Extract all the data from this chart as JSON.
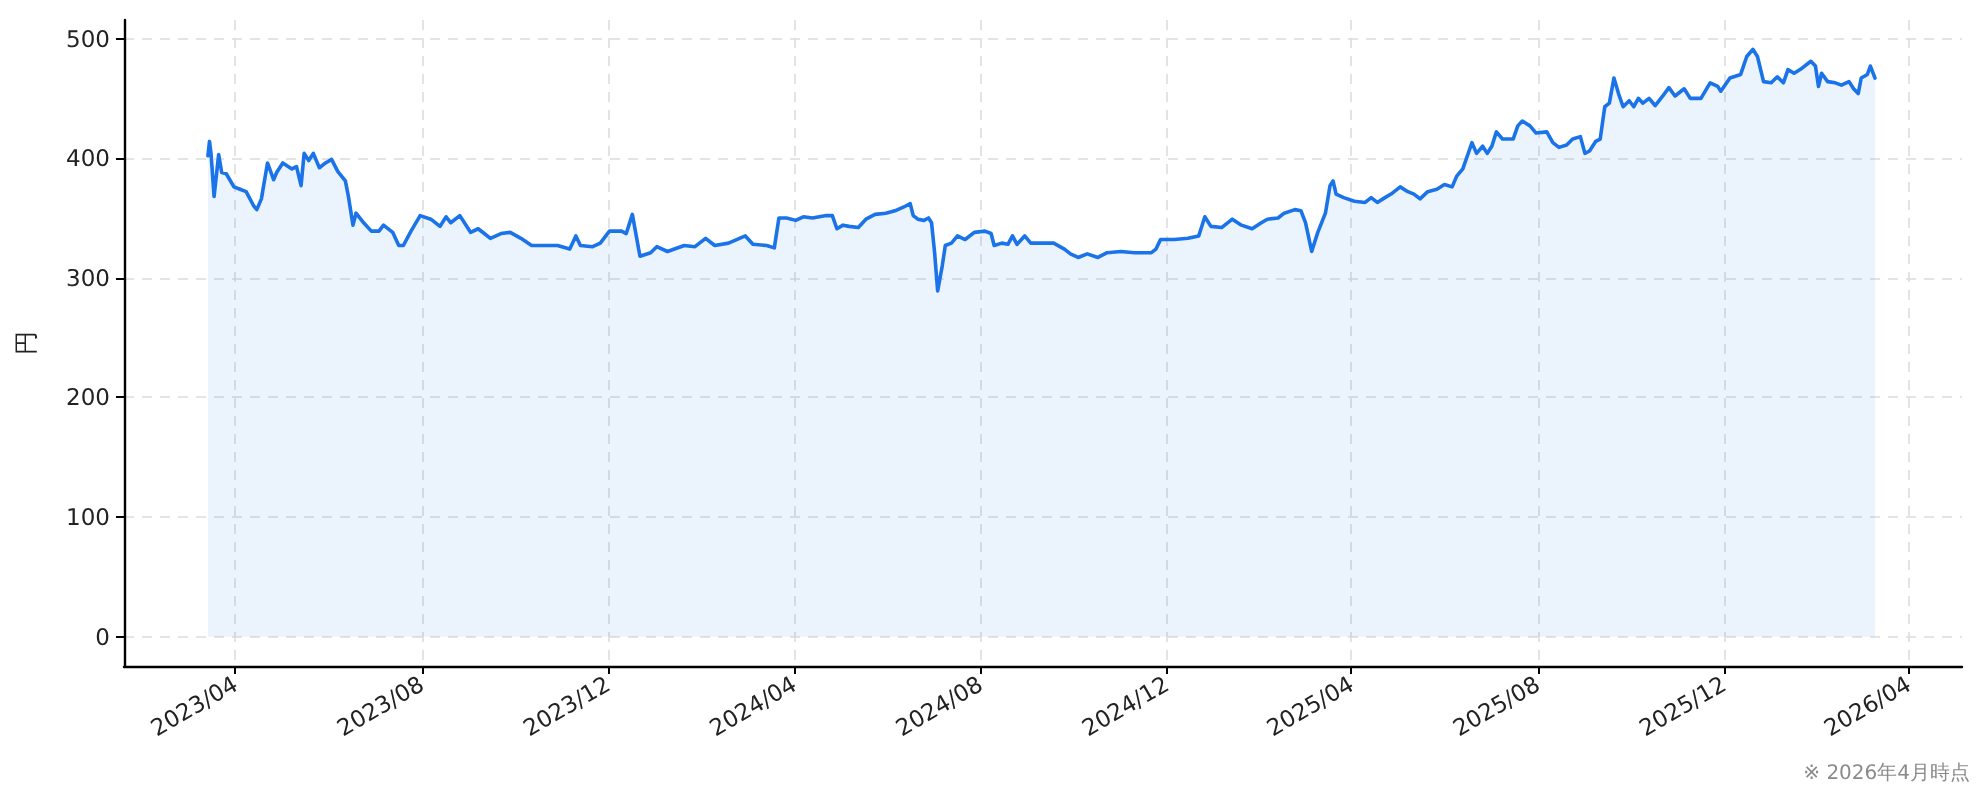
{
  "chart_data": {
    "type": "area",
    "ylabel": "円",
    "annotations": [
      "※ 2026年4月時点"
    ],
    "x": [
      "2023-03-14",
      "2023-03-15",
      "2023-03-16",
      "2023-03-18",
      "2023-03-21",
      "2023-03-23",
      "2023-03-26",
      "2023-03-31",
      "2023-04-04",
      "2023-04-08",
      "2023-04-13",
      "2023-04-15",
      "2023-04-18",
      "2023-04-22",
      "2023-04-26",
      "2023-04-28",
      "2023-05-02",
      "2023-05-08",
      "2023-05-11",
      "2023-05-14",
      "2023-05-16",
      "2023-05-19",
      "2023-05-22",
      "2023-05-26",
      "2023-05-30",
      "2023-06-03",
      "2023-06-07",
      "2023-06-12",
      "2023-06-14",
      "2023-06-17",
      "2023-06-19",
      "2023-06-24",
      "2023-06-29",
      "2023-07-04",
      "2023-07-07",
      "2023-07-13",
      "2023-07-17",
      "2023-07-20",
      "2023-07-25",
      "2023-07-31",
      "2023-08-07",
      "2023-08-13",
      "2023-08-17",
      "2023-08-20",
      "2023-08-26",
      "2023-09-02",
      "2023-09-07",
      "2023-09-11",
      "2023-09-15",
      "2023-09-22",
      "2023-09-28",
      "2023-10-05",
      "2023-10-12",
      "2023-10-20",
      "2023-10-29",
      "2023-11-06",
      "2023-11-10",
      "2023-11-13",
      "2023-11-21",
      "2023-11-26",
      "2023-12-02",
      "2023-12-10",
      "2023-12-13",
      "2023-12-17",
      "2023-12-22",
      "2023-12-29",
      "2024-01-02",
      "2024-01-09",
      "2024-01-20",
      "2024-01-27",
      "2024-02-03",
      "2024-02-09",
      "2024-02-18",
      "2024-02-29",
      "2024-03-05",
      "2024-03-14",
      "2024-03-19",
      "2024-03-22",
      "2024-03-27",
      "2024-04-02",
      "2024-04-07",
      "2024-04-13",
      "2024-04-22",
      "2024-04-26",
      "2024-04-29",
      "2024-05-03",
      "2024-05-07",
      "2024-05-13",
      "2024-05-18",
      "2024-05-24",
      "2024-05-31",
      "2024-06-06",
      "2024-06-13",
      "2024-06-16",
      "2024-06-18",
      "2024-06-21",
      "2024-06-25",
      "2024-06-28",
      "2024-06-30",
      "2024-07-02",
      "2024-07-04",
      "2024-07-07",
      "2024-07-09",
      "2024-07-13",
      "2024-07-17",
      "2024-07-22",
      "2024-07-28",
      "2024-08-04",
      "2024-08-08",
      "2024-08-10",
      "2024-08-15",
      "2024-08-19",
      "2024-08-22",
      "2024-08-25",
      "2024-08-30",
      "2024-09-03",
      "2024-09-12",
      "2024-09-18",
      "2024-09-25",
      "2024-09-29",
      "2024-10-04",
      "2024-10-10",
      "2024-10-17",
      "2024-10-23",
      "2024-11-01",
      "2024-11-10",
      "2024-11-21",
      "2024-11-24",
      "2024-11-27",
      "2024-12-06",
      "2024-12-15",
      "2024-12-22",
      "2024-12-26",
      "2024-12-30",
      "2025-01-06",
      "2025-01-13",
      "2025-01-19",
      "2025-01-26",
      "2025-02-01",
      "2025-02-05",
      "2025-02-12",
      "2025-02-16",
      "2025-02-23",
      "2025-02-27",
      "2025-03-02",
      "2025-03-06",
      "2025-03-10",
      "2025-03-15",
      "2025-03-18",
      "2025-03-20",
      "2025-03-22",
      "2025-03-27",
      "2025-04-03",
      "2025-04-10",
      "2025-04-14",
      "2025-04-18",
      "2025-04-23",
      "2025-04-27",
      "2025-05-03",
      "2025-05-08",
      "2025-05-12",
      "2025-05-16",
      "2025-05-21",
      "2025-05-27",
      "2025-06-01",
      "2025-06-06",
      "2025-06-09",
      "2025-06-13",
      "2025-06-16",
      "2025-06-19",
      "2025-06-22",
      "2025-06-26",
      "2025-06-29",
      "2025-07-02",
      "2025-07-05",
      "2025-07-09",
      "2025-07-16",
      "2025-07-19",
      "2025-07-22",
      "2025-07-27",
      "2025-07-31",
      "2025-08-07",
      "2025-08-11",
      "2025-08-15",
      "2025-08-20",
      "2025-08-24",
      "2025-08-29",
      "2025-09-01",
      "2025-09-04",
      "2025-09-08",
      "2025-09-11",
      "2025-09-14",
      "2025-09-17",
      "2025-09-20",
      "2025-09-23",
      "2025-09-26",
      "2025-09-30",
      "2025-10-03",
      "2025-10-06",
      "2025-10-09",
      "2025-10-13",
      "2025-10-17",
      "2025-10-22",
      "2025-10-26",
      "2025-10-30",
      "2025-11-05",
      "2025-11-09",
      "2025-11-16",
      "2025-11-22",
      "2025-11-27",
      "2025-11-29",
      "2025-12-05",
      "2025-12-12",
      "2025-12-16",
      "2025-12-20",
      "2025-12-23",
      "2025-12-27",
      "2026-01-01",
      "2026-01-05",
      "2026-01-09",
      "2026-01-12",
      "2026-01-16",
      "2026-01-21",
      "2026-01-27",
      "2026-01-30",
      "2026-02-01",
      "2026-02-03",
      "2026-02-07",
      "2026-02-12",
      "2026-02-16",
      "2026-02-21",
      "2026-02-24",
      "2026-02-27",
      "2026-03-01",
      "2026-03-05",
      "2026-03-07",
      "2026-03-10"
    ],
    "series": [
      {
        "color": "#1a73e8",
        "values": [
          402,
          414,
          404,
          368,
          403,
          388,
          387,
          376,
          374,
          372,
          360,
          357,
          366,
          396,
          382,
          388,
          396,
          391,
          393,
          377,
          404,
          398,
          404,
          392,
          396,
          399,
          389,
          381,
          368,
          344,
          354,
          346,
          339,
          339,
          344,
          338,
          327,
          327,
          339,
          352,
          349,
          343,
          351,
          346,
          352,
          338,
          341,
          337,
          333,
          337,
          338,
          333,
          327,
          327,
          327,
          324,
          335,
          327,
          326,
          329,
          339,
          339,
          337,
          353,
          318,
          321,
          326,
          322,
          327,
          326,
          333,
          327,
          329,
          335,
          328,
          327,
          325,
          350,
          350,
          348,
          351,
          350,
          352,
          352,
          341,
          344,
          343,
          342,
          349,
          353,
          354,
          356,
          360,
          362,
          352,
          349,
          348,
          350,
          346,
          321,
          289,
          310,
          327,
          329,
          335,
          332,
          338,
          339,
          337,
          327,
          329,
          328,
          335,
          328,
          335,
          329,
          329,
          329,
          324,
          320,
          317,
          320,
          317,
          321,
          322,
          321,
          321,
          324,
          332,
          332,
          333,
          335,
          351,
          343,
          342,
          349,
          344,
          341,
          346,
          349,
          350,
          354,
          357,
          356,
          346,
          322,
          338,
          354,
          377,
          381,
          370,
          367,
          364,
          363,
          367,
          363,
          367,
          370,
          376,
          372,
          370,
          366,
          372,
          374,
          378,
          376,
          385,
          391,
          402,
          413,
          404,
          410,
          404,
          410,
          422,
          416,
          416,
          427,
          431,
          427,
          421,
          422,
          413,
          409,
          411,
          416,
          418,
          404,
          406,
          414,
          416,
          443,
          446,
          467,
          454,
          443,
          448,
          443,
          450,
          446,
          450,
          444,
          452,
          459,
          452,
          458,
          450,
          450,
          463,
          460,
          456,
          467,
          470,
          485,
          491,
          485,
          464,
          463,
          468,
          463,
          474,
          471,
          475,
          481,
          477,
          460,
          471,
          464,
          463,
          461,
          464,
          458,
          454,
          467,
          470,
          477,
          467
        ]
      }
    ],
    "xlim": [
      "2023-01-18",
      "2026-05-06"
    ],
    "xticks": [
      {
        "value": "2023-04-01",
        "label": "2023/04"
      },
      {
        "value": "2023-08-01",
        "label": "2023/08"
      },
      {
        "value": "2023-12-01",
        "label": "2023/12"
      },
      {
        "value": "2024-04-01",
        "label": "2024/04"
      },
      {
        "value": "2024-08-01",
        "label": "2024/08"
      },
      {
        "value": "2024-12-01",
        "label": "2024/12"
      },
      {
        "value": "2025-04-01",
        "label": "2025/04"
      },
      {
        "value": "2025-08-01",
        "label": "2025/08"
      },
      {
        "value": "2025-12-01",
        "label": "2025/12"
      },
      {
        "value": "2026-04-01",
        "label": "2026/04"
      }
    ],
    "ylim": [
      -24.5,
      515.5
    ],
    "yticks": [
      0,
      100,
      200,
      300,
      400,
      500
    ],
    "grid": true,
    "marker": "none",
    "line_style": "solid"
  }
}
